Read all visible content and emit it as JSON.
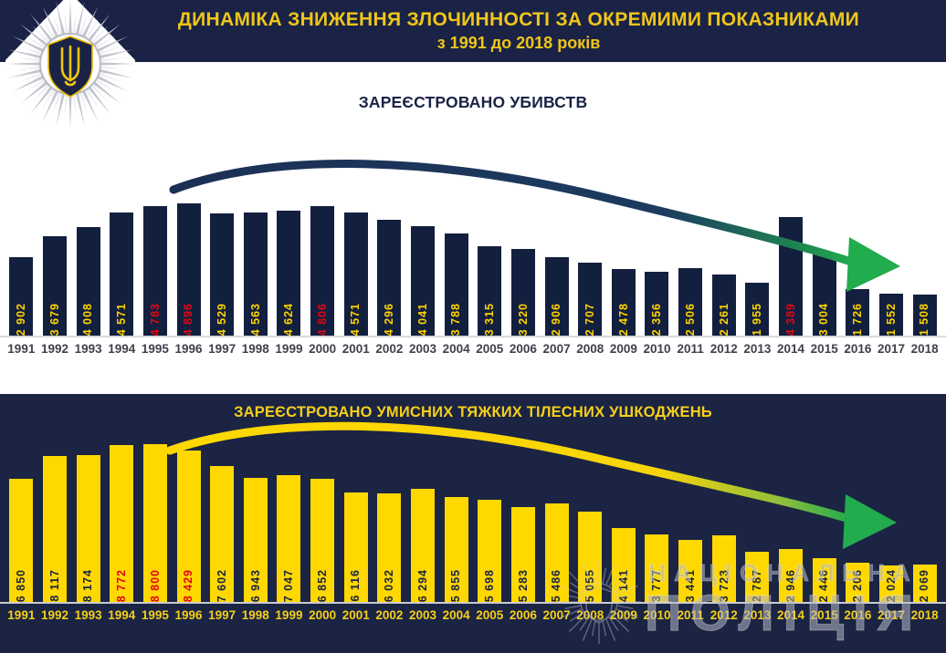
{
  "header": {
    "title_line1": "ДИНАМІКА ЗНИЖЕННЯ ЗЛОЧИННОСТІ ЗА ОКРЕМИМИ ПОКАЗНИКАМИ",
    "title_line2": "з 1991 до 2018 років"
  },
  "logo": {
    "name": "national-police-of-ukraine-badge"
  },
  "watermark": {
    "line1": "НАЦІОНАЛЬНА",
    "line2": "ПОЛІЦІЯ"
  },
  "colors": {
    "header_navy": "#1A2345",
    "panel_navy": "#1B2443",
    "bar_navy": "#131F3E",
    "bar_yellow": "#FFD800",
    "title_yellow": "#EFC51B",
    "value_yellow": "#FFD400",
    "value_navy": "#1A2442",
    "highlight_red": "#E30613",
    "arrow_green": "#22AC4E",
    "year_gray": "#41414B",
    "year_yellow": "#F5CF1A"
  },
  "chart_data": [
    {
      "type": "bar",
      "title": "ЗАРЕЄСТРОВАНО УБИВСТВ",
      "categories": [
        1991,
        1992,
        1993,
        1994,
        1995,
        1996,
        1997,
        1998,
        1999,
        2000,
        2001,
        2002,
        2003,
        2004,
        2005,
        2006,
        2007,
        2008,
        2009,
        2010,
        2011,
        2012,
        2013,
        2014,
        2015,
        2016,
        2017,
        2018
      ],
      "values": [
        2902,
        3679,
        4008,
        4571,
        4783,
        4896,
        4529,
        4563,
        4624,
        4806,
        4571,
        4296,
        4041,
        3788,
        3315,
        3220,
        2906,
        2707,
        2478,
        2356,
        2506,
        2261,
        1955,
        4389,
        3004,
        1726,
        1552,
        1508
      ],
      "highlight_red_years": [
        1995,
        1996,
        2000,
        2014
      ],
      "ylim": [
        0,
        4896
      ],
      "bar_color": "#131F3E",
      "label_color": "#FFD400",
      "label_color_red": "#E30613",
      "year_color": "#41414B",
      "trend": "down",
      "legend": "none",
      "grid": "off"
    },
    {
      "type": "bar",
      "title": "ЗАРЕЄСТРОВАНО  УМИСНИХ ТЯЖКИХ ТІЛЕСНИХ УШКОДЖЕНЬ",
      "categories": [
        1991,
        1992,
        1993,
        1994,
        1995,
        1996,
        1997,
        1998,
        1999,
        2000,
        2001,
        2002,
        2003,
        2004,
        2005,
        2006,
        2007,
        2008,
        2009,
        2010,
        2011,
        2012,
        2013,
        2014,
        2015,
        2016,
        2017,
        2018
      ],
      "values": [
        6850,
        8117,
        8174,
        8772,
        8800,
        8429,
        7602,
        6943,
        7047,
        6852,
        6116,
        6032,
        6294,
        5855,
        5698,
        5283,
        5486,
        5055,
        4141,
        3777,
        3441,
        3723,
        2787,
        2946,
        2446,
        2206,
        2024,
        2069
      ],
      "highlight_red_years": [
        1994,
        1995,
        1996
      ],
      "ylim": [
        0,
        8800
      ],
      "bar_color": "#FFD800",
      "label_color": "#1A2442",
      "label_color_red": "#E30613",
      "year_color": "#F5CF1A",
      "trend": "down",
      "legend": "none",
      "grid": "off"
    }
  ]
}
